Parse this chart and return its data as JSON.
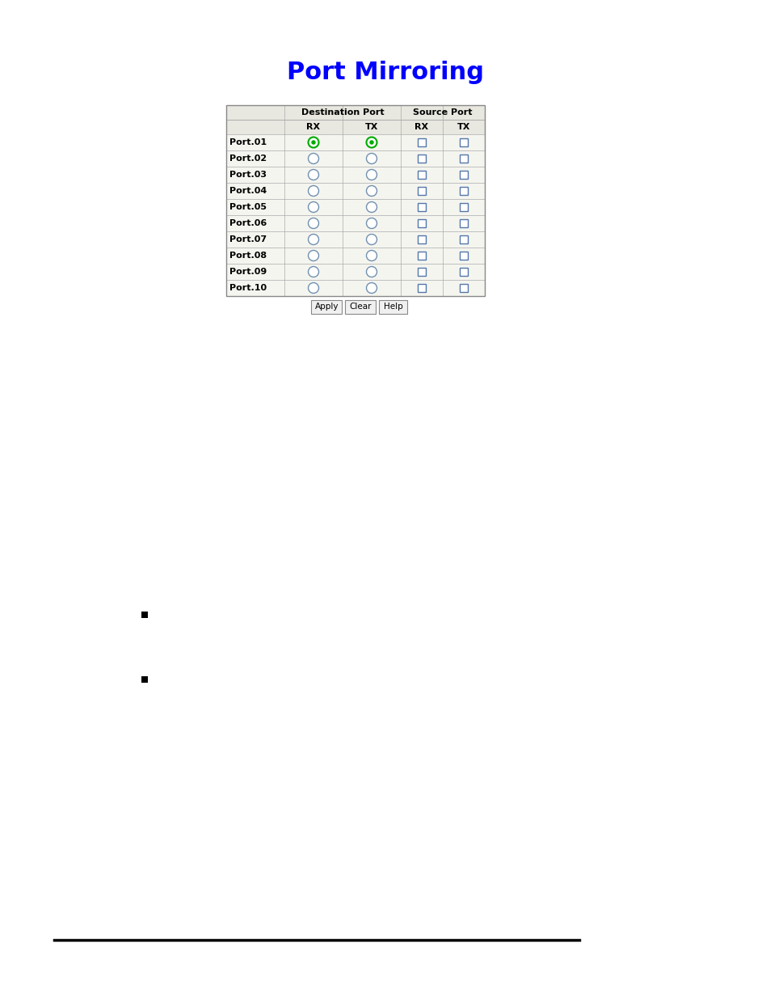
{
  "title": "Port Mirroring",
  "title_color": "#0000FF",
  "title_fontsize": 22,
  "bg_color": "#FFFFFF",
  "ports": [
    "Port.01",
    "Port.02",
    "Port.03",
    "Port.04",
    "Port.05",
    "Port.06",
    "Port.07",
    "Port.08",
    "Port.09",
    "Port.10"
  ],
  "col_headers_row1": [
    "",
    "Destination Port",
    "Source Port"
  ],
  "col_headers_row2": [
    "RX",
    "TX",
    "RX",
    "TX"
  ],
  "dest_rx_selected": [
    true,
    false,
    false,
    false,
    false,
    false,
    false,
    false,
    false,
    false
  ],
  "dest_tx_selected": [
    true,
    false,
    false,
    false,
    false,
    false,
    false,
    false,
    false,
    false
  ],
  "src_rx_checked": [
    false,
    false,
    false,
    false,
    false,
    false,
    false,
    false,
    false,
    false
  ],
  "src_tx_checked": [
    false,
    false,
    false,
    false,
    false,
    false,
    false,
    false,
    false,
    false
  ],
  "buttons": [
    "Apply",
    "Clear",
    "Help"
  ],
  "table_border_color": "#AAAAAA",
  "table_header_bg": "#E8E8E0",
  "table_row_bg": "#F5F5F0",
  "radio_color_selected": "#00AA00",
  "radio_color_unselected": "#7090B0",
  "checkbox_color": "#5577AA",
  "font_size_table": 8,
  "font_size_header": 8,
  "font_size_title": 22
}
